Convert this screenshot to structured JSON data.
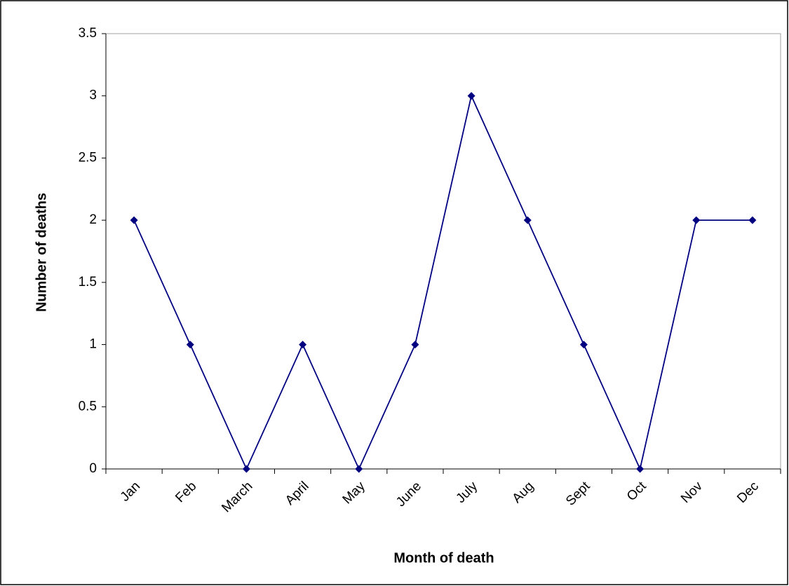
{
  "chart_data": {
    "type": "line",
    "x_label": "Month of death",
    "y_label": "Number of deaths",
    "categories": [
      "Jan",
      "Feb",
      "March",
      "April",
      "May",
      "June",
      "July",
      "Aug",
      "Sept",
      "Oct",
      "Nov",
      "Dec"
    ],
    "series": [
      {
        "color": "#000080",
        "values": [
          2,
          1,
          0,
          1,
          0,
          1,
          3,
          2,
          1,
          0,
          2,
          2
        ]
      }
    ],
    "ylim": [
      0,
      3.5
    ],
    "yticks": [
      0,
      0.5,
      1,
      1.5,
      2,
      2.5,
      3,
      3.5
    ],
    "grid": false
  }
}
